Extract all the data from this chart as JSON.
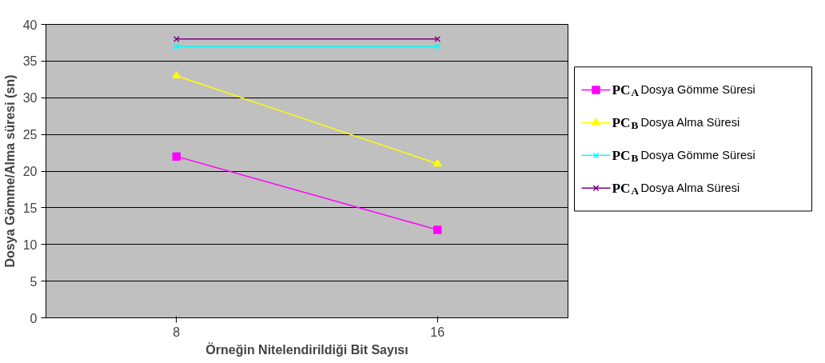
{
  "chart_data": {
    "type": "line",
    "xlabel": "Örneğin Nitelendirildiği Bit Sayısı",
    "ylabel": "Dosya Gömme/Alma süresi (sn)",
    "categories": [
      "8",
      "16"
    ],
    "ylim": [
      0,
      40
    ],
    "yticks": [
      0,
      5,
      10,
      15,
      20,
      25,
      30,
      35,
      40
    ],
    "grid": "y",
    "legend": "right",
    "series": [
      {
        "name": "PC$_{A}$ Dosya Gömme  Süresi",
        "color": "#ff00ff",
        "marker": "square",
        "values": [
          22,
          12
        ]
      },
      {
        "name": "PC$_{B}$ Dosya Alma  Süresi",
        "color": "#ffff00",
        "marker": "triangle",
        "values": [
          33,
          21
        ]
      },
      {
        "name": "PC$_{B}$ Dosya  Gömme Süresi",
        "color": "#00ffff",
        "marker": "cross",
        "values": [
          37,
          37
        ]
      },
      {
        "name": "PC$_{A}$ Dosya Alma Süresi",
        "color": "#800080",
        "marker": "cross",
        "values": [
          38,
          38
        ]
      }
    ]
  }
}
